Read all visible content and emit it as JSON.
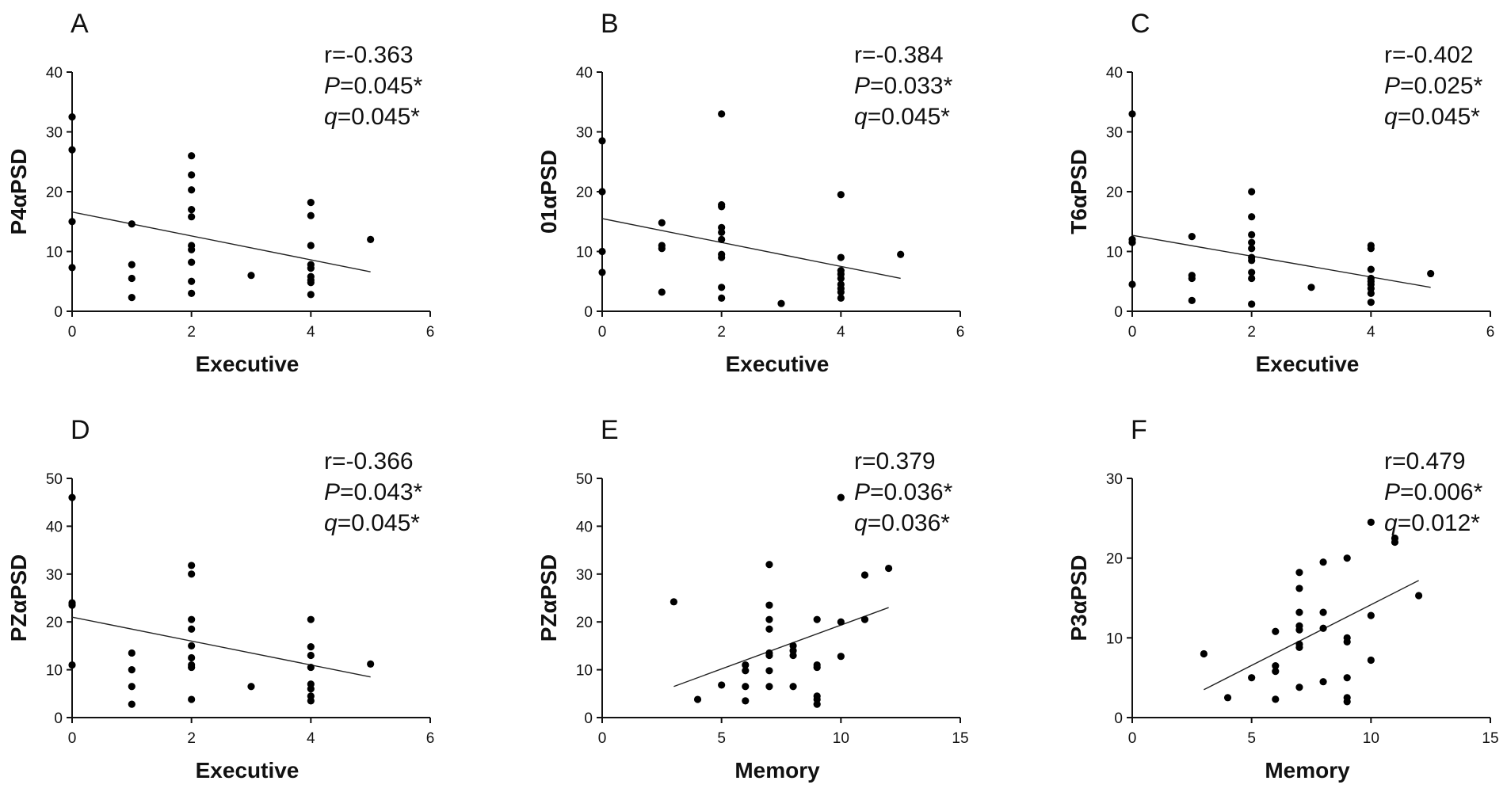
{
  "chart_data": [
    {
      "type": "scatter",
      "panel": "A",
      "xlabel": "Executive",
      "ylabel": "P4αPSD",
      "xlim": [
        0,
        6
      ],
      "ylim": [
        0,
        40
      ],
      "xticks": [
        "0",
        "2",
        "4",
        "6"
      ],
      "yticks": [
        "0",
        "10",
        "20",
        "30",
        "40"
      ],
      "stats": {
        "r": "r=-0.363",
        "p_label": "P",
        "p_value": "=0.045*",
        "q_label": "q",
        "q_value": "=0.045*"
      },
      "points": [
        [
          0,
          32.5
        ],
        [
          0,
          27
        ],
        [
          0,
          15
        ],
        [
          0,
          7.3
        ],
        [
          1,
          14.6
        ],
        [
          1,
          7.8
        ],
        [
          1,
          5.5
        ],
        [
          1,
          2.3
        ],
        [
          2,
          26
        ],
        [
          2,
          22.8
        ],
        [
          2,
          20.3
        ],
        [
          2,
          17
        ],
        [
          2,
          15.8
        ],
        [
          2,
          11
        ],
        [
          2,
          10.3
        ],
        [
          2,
          8.2
        ],
        [
          2,
          5
        ],
        [
          2,
          3
        ],
        [
          3,
          6
        ],
        [
          4,
          18.2
        ],
        [
          4,
          16
        ],
        [
          4,
          11
        ],
        [
          4,
          7.8
        ],
        [
          4,
          7.2
        ],
        [
          4,
          5.8
        ],
        [
          4,
          5.2
        ],
        [
          4,
          4.8
        ],
        [
          4,
          2.8
        ],
        [
          5,
          12
        ]
      ],
      "fit": [
        [
          0,
          16.6
        ],
        [
          5,
          6.6
        ]
      ]
    },
    {
      "type": "scatter",
      "panel": "B",
      "xlabel": "Executive",
      "ylabel": "01αPSD",
      "xlim": [
        0,
        6
      ],
      "ylim": [
        0,
        40
      ],
      "xticks": [
        "0",
        "2",
        "4",
        "6"
      ],
      "yticks": [
        "0",
        "10",
        "20",
        "30",
        "40"
      ],
      "stats": {
        "r": "r=-0.384",
        "p_label": "P",
        "p_value": "=0.033*",
        "q_label": "q",
        "q_value": "=0.045*"
      },
      "points": [
        [
          0,
          28.5
        ],
        [
          0,
          20
        ],
        [
          0,
          10
        ],
        [
          0,
          6.5
        ],
        [
          1,
          14.8
        ],
        [
          1,
          11
        ],
        [
          1,
          10.5
        ],
        [
          1,
          3.2
        ],
        [
          2,
          33
        ],
        [
          2,
          17.8
        ],
        [
          2,
          17.5
        ],
        [
          2,
          14
        ],
        [
          2,
          13.2
        ],
        [
          2,
          12
        ],
        [
          2,
          9.5
        ],
        [
          2,
          9
        ],
        [
          2,
          4
        ],
        [
          2,
          2.2
        ],
        [
          3,
          1.3
        ],
        [
          4,
          19.5
        ],
        [
          4,
          9
        ],
        [
          4,
          6.8
        ],
        [
          4,
          6.2
        ],
        [
          4,
          5.5
        ],
        [
          4,
          4.5
        ],
        [
          4,
          3.8
        ],
        [
          4,
          3.2
        ],
        [
          4,
          2.2
        ],
        [
          5,
          9.5
        ]
      ],
      "fit": [
        [
          0,
          15.5
        ],
        [
          5,
          5.5
        ]
      ]
    },
    {
      "type": "scatter",
      "panel": "C",
      "xlabel": "Executive",
      "ylabel": "T6αPSD",
      "xlim": [
        0,
        6
      ],
      "ylim": [
        0,
        40
      ],
      "xticks": [
        "0",
        "2",
        "4",
        "6"
      ],
      "yticks": [
        "0",
        "10",
        "20",
        "30",
        "40"
      ],
      "stats": {
        "r": "r=-0.402",
        "p_label": "P",
        "p_value": "=0.025*",
        "q_label": "q",
        "q_value": "=0.045*"
      },
      "points": [
        [
          0,
          33
        ],
        [
          0,
          12
        ],
        [
          0,
          11.5
        ],
        [
          0,
          4.5
        ],
        [
          1,
          12.5
        ],
        [
          1,
          6
        ],
        [
          1,
          5.5
        ],
        [
          1,
          1.8
        ],
        [
          2,
          20
        ],
        [
          2,
          15.8
        ],
        [
          2,
          12.8
        ],
        [
          2,
          11.5
        ],
        [
          2,
          10.5
        ],
        [
          2,
          9
        ],
        [
          2,
          8.5
        ],
        [
          2,
          6.5
        ],
        [
          2,
          5.5
        ],
        [
          2,
          1.2
        ],
        [
          3,
          4
        ],
        [
          4,
          11
        ],
        [
          4,
          10.5
        ],
        [
          4,
          7
        ],
        [
          4,
          5.5
        ],
        [
          4,
          5
        ],
        [
          4,
          4.5
        ],
        [
          4,
          3.8
        ],
        [
          4,
          3
        ],
        [
          4,
          1.5
        ],
        [
          5,
          6.3
        ]
      ],
      "fit": [
        [
          0,
          12.7
        ],
        [
          5,
          4
        ]
      ]
    },
    {
      "type": "scatter",
      "panel": "D",
      "xlabel": "Executive",
      "ylabel": "PZαPSD",
      "xlim": [
        0,
        6
      ],
      "ylim": [
        0,
        50
      ],
      "xticks": [
        "0",
        "2",
        "4",
        "6"
      ],
      "yticks": [
        "0",
        "10",
        "20",
        "30",
        "40",
        "50"
      ],
      "stats": {
        "r": "r=-0.366",
        "p_label": "P",
        "p_value": "=0.043*",
        "q_label": "q",
        "q_value": "=0.045*"
      },
      "points": [
        [
          0,
          46
        ],
        [
          0,
          24
        ],
        [
          0,
          23.5
        ],
        [
          0,
          11
        ],
        [
          1,
          13.5
        ],
        [
          1,
          10
        ],
        [
          1,
          6.5
        ],
        [
          1,
          2.8
        ],
        [
          2,
          31.8
        ],
        [
          2,
          30
        ],
        [
          2,
          20.5
        ],
        [
          2,
          18.5
        ],
        [
          2,
          15
        ],
        [
          2,
          12.5
        ],
        [
          2,
          11
        ],
        [
          2,
          10.5
        ],
        [
          2,
          3.8
        ],
        [
          3,
          6.5
        ],
        [
          4,
          20.5
        ],
        [
          4,
          14.8
        ],
        [
          4,
          13
        ],
        [
          4,
          10.5
        ],
        [
          4,
          7
        ],
        [
          4,
          6
        ],
        [
          4,
          4.5
        ],
        [
          4,
          3.5
        ],
        [
          5,
          11.2
        ]
      ],
      "fit": [
        [
          0,
          21
        ],
        [
          5,
          8.5
        ]
      ]
    },
    {
      "type": "scatter",
      "panel": "E",
      "xlabel": "Memory",
      "ylabel": "PZαPSD",
      "xlim": [
        0,
        15
      ],
      "ylim": [
        0,
        50
      ],
      "xticks": [
        "0",
        "5",
        "10",
        "15"
      ],
      "yticks": [
        "0",
        "10",
        "20",
        "30",
        "40",
        "50"
      ],
      "stats": {
        "r": "r=0.379",
        "p_label": "P",
        "p_value": "=0.036*",
        "q_label": "q",
        "q_value": "=0.036*"
      },
      "points": [
        [
          3,
          24.2
        ],
        [
          4,
          3.8
        ],
        [
          5,
          6.8
        ],
        [
          6,
          11
        ],
        [
          6,
          9.8
        ],
        [
          6,
          6.5
        ],
        [
          6,
          3.5
        ],
        [
          7,
          32
        ],
        [
          7,
          23.5
        ],
        [
          7,
          20.5
        ],
        [
          7,
          18.5
        ],
        [
          7,
          13.5
        ],
        [
          7,
          13
        ],
        [
          7,
          9.8
        ],
        [
          7,
          6.5
        ],
        [
          8,
          15
        ],
        [
          8,
          14
        ],
        [
          8,
          13
        ],
        [
          8,
          6.5
        ],
        [
          9,
          20.5
        ],
        [
          9,
          11
        ],
        [
          9,
          10.5
        ],
        [
          9,
          4.5
        ],
        [
          9,
          3.8
        ],
        [
          9,
          2.8
        ],
        [
          10,
          46
        ],
        [
          10,
          20
        ],
        [
          10,
          12.8
        ],
        [
          11,
          29.8
        ],
        [
          11,
          20.5
        ],
        [
          12,
          31.2
        ]
      ],
      "fit": [
        [
          3,
          6.5
        ],
        [
          12,
          23
        ]
      ]
    },
    {
      "type": "scatter",
      "panel": "F",
      "xlabel": "Memory",
      "ylabel": "P3αPSD",
      "xlim": [
        0,
        15
      ],
      "ylim": [
        0,
        30
      ],
      "xticks": [
        "0",
        "5",
        "10",
        "15"
      ],
      "yticks": [
        "0",
        "10",
        "20",
        "30"
      ],
      "stats": {
        "r": "r=0.479",
        "p_label": "P",
        "p_value": "=0.006*",
        "q_label": "q",
        "q_value": "=0.012*"
      },
      "points": [
        [
          3,
          8
        ],
        [
          4,
          2.5
        ],
        [
          5,
          5
        ],
        [
          6,
          10.8
        ],
        [
          6,
          6.5
        ],
        [
          6,
          5.8
        ],
        [
          6,
          2.3
        ],
        [
          7,
          18.2
        ],
        [
          7,
          16.2
        ],
        [
          7,
          13.2
        ],
        [
          7,
          11.5
        ],
        [
          7,
          11
        ],
        [
          7,
          9.2
        ],
        [
          7,
          8.8
        ],
        [
          7,
          3.8
        ],
        [
          8,
          19.5
        ],
        [
          8,
          13.2
        ],
        [
          8,
          11.2
        ],
        [
          8,
          4.5
        ],
        [
          9,
          20
        ],
        [
          9,
          10
        ],
        [
          9,
          9.5
        ],
        [
          9,
          5
        ],
        [
          9,
          2.5
        ],
        [
          9,
          2
        ],
        [
          10,
          24.5
        ],
        [
          10,
          12.8
        ],
        [
          10,
          7.2
        ],
        [
          11,
          22.5
        ],
        [
          11,
          22
        ],
        [
          12,
          15.3
        ]
      ],
      "fit": [
        [
          3,
          3.5
        ],
        [
          12,
          17.2
        ]
      ]
    }
  ]
}
